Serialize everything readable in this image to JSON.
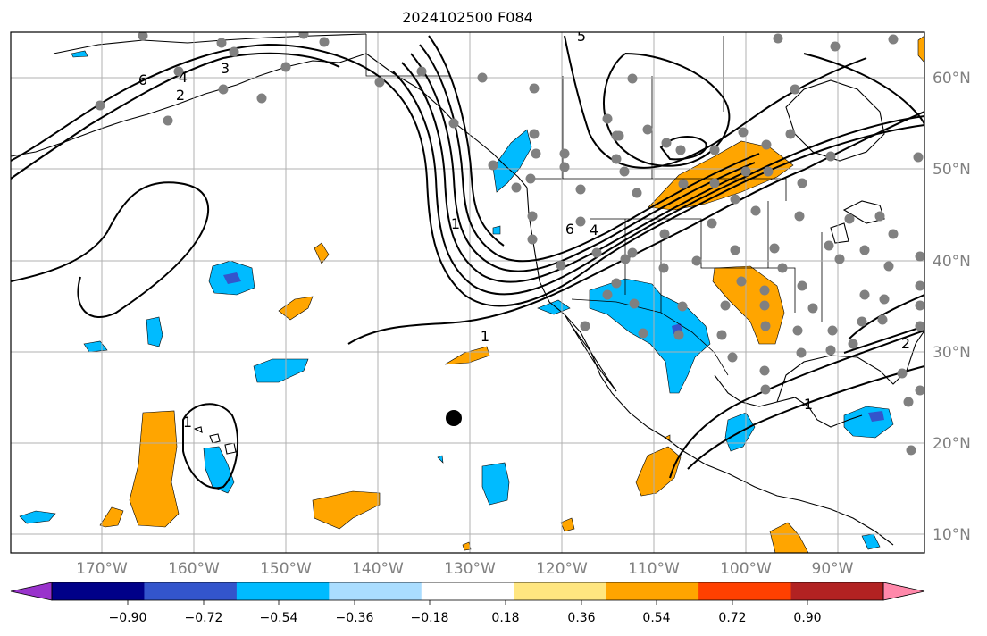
{
  "title": "2024102500 F084",
  "map": {
    "lon_range": [
      -180,
      -80
    ],
    "lat_range": [
      8,
      65
    ],
    "lon_ticks": [
      {
        "value": -170,
        "label": "170°W"
      },
      {
        "value": -160,
        "label": "160°W"
      },
      {
        "value": -150,
        "label": "150°W"
      },
      {
        "value": -140,
        "label": "140°W"
      },
      {
        "value": -130,
        "label": "130°W"
      },
      {
        "value": -120,
        "label": "120°W"
      },
      {
        "value": -110,
        "label": "110°W"
      },
      {
        "value": -100,
        "label": "100°W"
      },
      {
        "value": -90,
        "label": "90°W"
      }
    ],
    "lat_ticks": [
      {
        "value": 60,
        "label": "60°N"
      },
      {
        "value": 50,
        "label": "50°N"
      },
      {
        "value": 40,
        "label": "40°N"
      },
      {
        "value": 30,
        "label": "30°N"
      },
      {
        "value": 20,
        "label": "20°N"
      },
      {
        "value": 10,
        "label": "10°N"
      }
    ],
    "contour_labels": [
      "1",
      "2",
      "3",
      "4",
      "6",
      "1",
      "6",
      "4",
      "5",
      "2",
      "1",
      "1"
    ],
    "colors": {
      "contour": "#000000",
      "station_dot": "#808080",
      "marker": "#000000",
      "grid": "#b0b0b0"
    }
  },
  "colorbar": {
    "colors": [
      "#9933cc",
      "#000088",
      "#3355cc",
      "#00bbff",
      "#aaddff",
      "#ffffff",
      "#ffe680",
      "#ffa500",
      "#ff4000",
      "#b22222",
      "#ff88aa"
    ],
    "tick_labels": [
      "−0.90",
      "−0.72",
      "−0.54",
      "−0.36",
      "−0.18",
      "0.18",
      "0.36",
      "0.54",
      "0.72",
      "0.90"
    ]
  }
}
